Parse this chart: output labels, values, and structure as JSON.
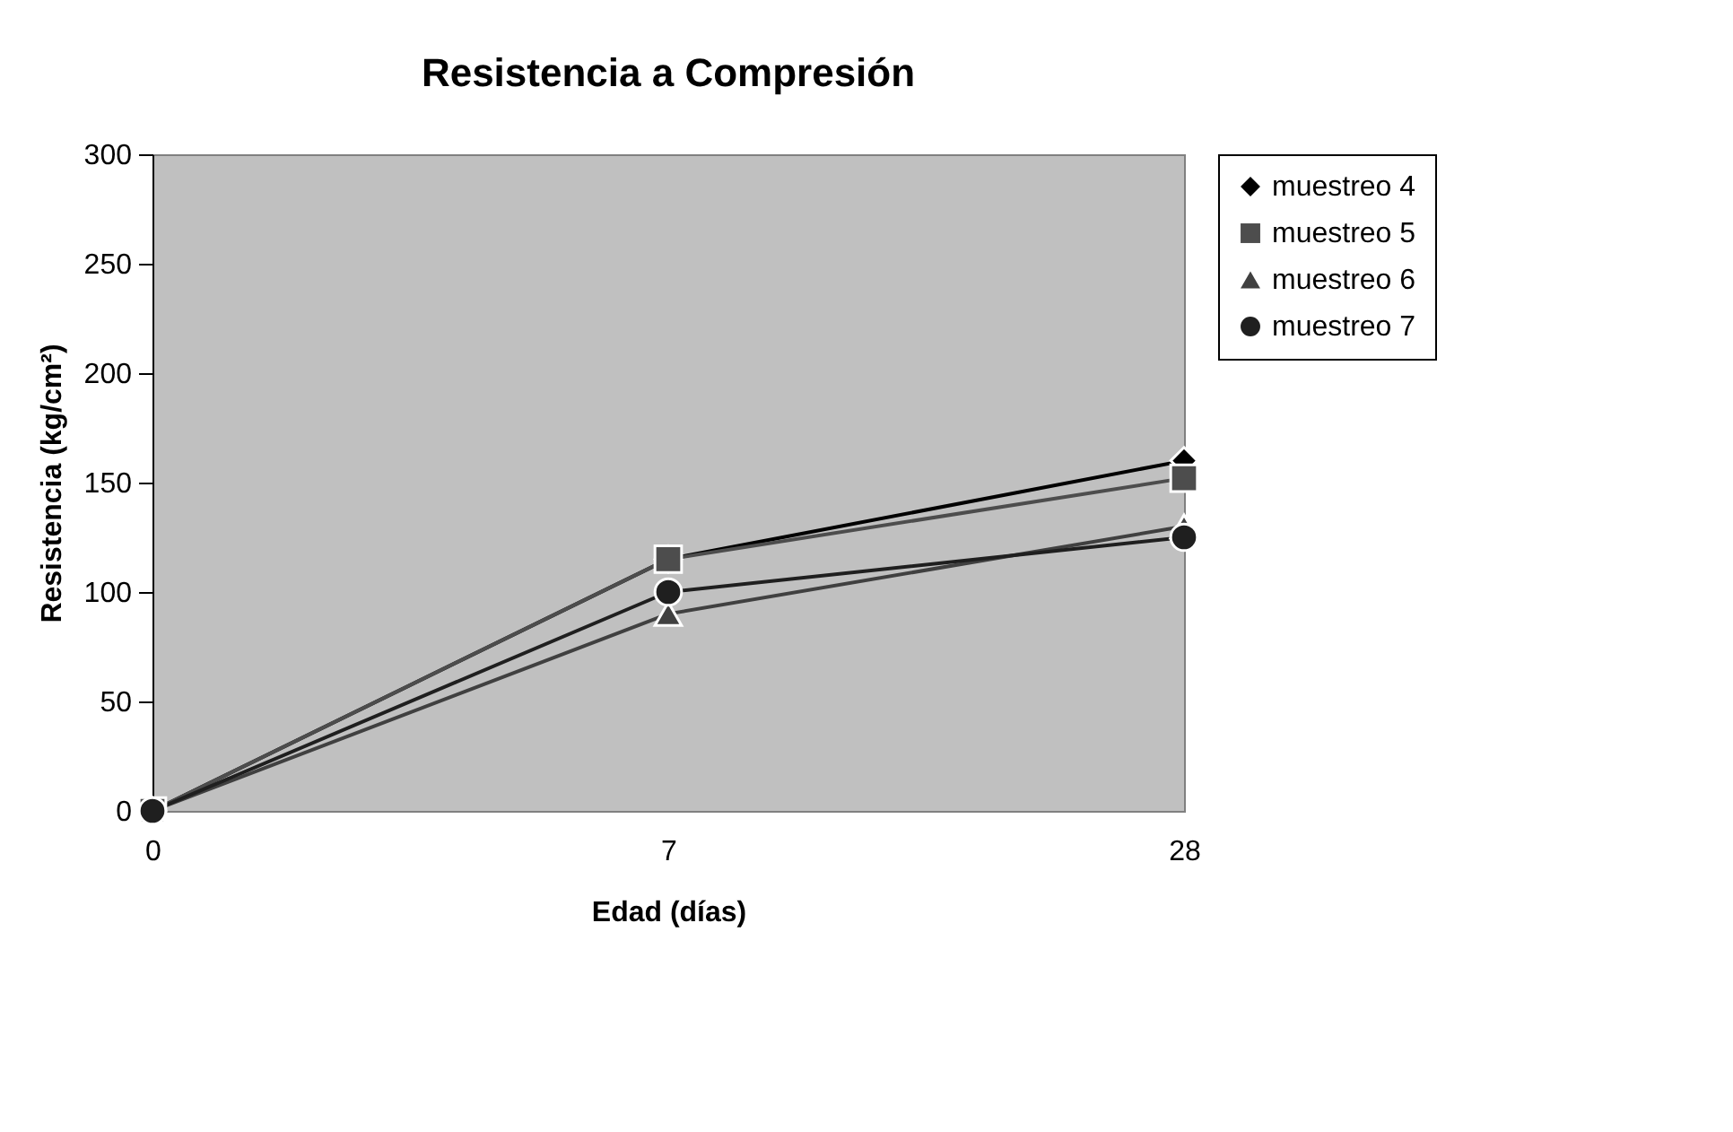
{
  "chart_data": {
    "type": "line",
    "title": "Resistencia a Compresión",
    "xlabel": "Edad (días)",
    "ylabel": "Resistencia (kg/cm²)",
    "categories": [
      "0",
      "7",
      "28"
    ],
    "series": [
      {
        "name": "muestreo 4",
        "color": "#000000",
        "marker": "diamond",
        "values": [
          0,
          115,
          160
        ]
      },
      {
        "name": "muestreo 5",
        "color": "#4d4d4d",
        "marker": "square",
        "values": [
          0,
          115,
          152
        ]
      },
      {
        "name": "muestreo 6",
        "color": "#404040",
        "marker": "triangle",
        "values": [
          0,
          90,
          130
        ]
      },
      {
        "name": "muestreo 7",
        "color": "#1f1f1f",
        "marker": "circle",
        "values": [
          0,
          100,
          125
        ]
      }
    ],
    "ylim": [
      0,
      300
    ],
    "yticks": [
      0,
      50,
      100,
      150,
      200,
      250,
      300
    ],
    "grid": false,
    "legend": "right",
    "line_style": "solid"
  }
}
